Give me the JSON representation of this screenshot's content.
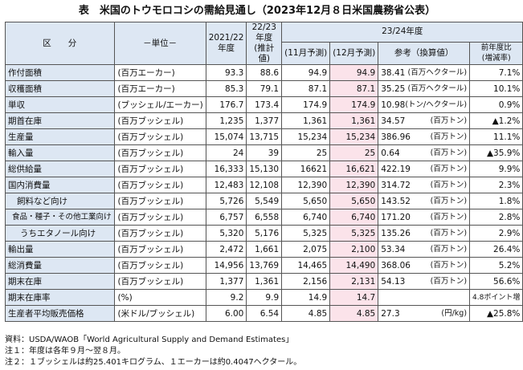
{
  "title": "表　米国のトウモロコシの需給見通し（2023年12月８日米国農務省公表）",
  "header": {
    "item": "区　　分",
    "unit": "－単位－",
    "col_2021": "2021/22\n年度",
    "col_2022": "22/23\n年度\n(推計値)",
    "col_2023_group": "23/24年度",
    "nov": "(11月予測)",
    "dec": "(12月予測)",
    "ref": "参考（換算値）",
    "change": "前年度比\n(増減率)"
  },
  "rows": [
    {
      "label": "作付面積",
      "unit": "(百万エーカー)",
      "v21": "93.3",
      "v22": "88.6",
      "nov": "94.9",
      "dec": "94.9",
      "ref_val": "38.41",
      "ref_unit": "(百万ヘクタール)",
      "change": "7.1%"
    },
    {
      "label": "収穫面積",
      "unit": "(百万エーカー)",
      "v21": "85.3",
      "v22": "79.1",
      "nov": "87.1",
      "dec": "87.1",
      "ref_val": "35.25",
      "ref_unit": "(百万ヘクタール)",
      "change": "10.1%"
    },
    {
      "label": "単収",
      "unit": "(ブッシェル/エーカー)",
      "v21": "176.7",
      "v22": "173.4",
      "nov": "174.9",
      "dec": "174.9",
      "ref_val": "10.98",
      "ref_unit": "(トン/ヘクタール)",
      "change": "0.9%"
    },
    {
      "label": "期首在庫",
      "unit": "(百万ブッシェル)",
      "v21": "1,235",
      "v22": "1,377",
      "nov": "1,361",
      "dec": "1,361",
      "ref_val": "34.57",
      "ref_unit": "(百万トン)",
      "change": "▲1.2%"
    },
    {
      "label": "生産量",
      "unit": "(百万ブッシェル)",
      "v21": "15,074",
      "v22": "13,715",
      "nov": "15,234",
      "dec": "15,234",
      "ref_val": "386.96",
      "ref_unit": "(百万トン)",
      "change": "11.1%"
    },
    {
      "label": "輸入量",
      "unit": "(百万ブッシェル)",
      "v21": "24",
      "v22": "39",
      "nov": "25",
      "dec": "25",
      "ref_val": "0.64",
      "ref_unit": "(百万トン)",
      "change": "▲35.9%"
    },
    {
      "label": "総供給量",
      "unit": "(百万ブッシェル)",
      "v21": "16,333",
      "v22": "15,130",
      "nov": "16621",
      "dec": "16,621",
      "ref_val": "422.19",
      "ref_unit": "(百万トン)",
      "change": "9.9%"
    },
    {
      "label": "国内消費量",
      "unit": "(百万ブッシェル)",
      "v21": "12,483",
      "v22": "12,108",
      "nov": "12,390",
      "dec": "12,390",
      "ref_val": "314.72",
      "ref_unit": "(百万トン)",
      "change": "2.3%"
    },
    {
      "label": "飼料など向け",
      "indent": "ind1",
      "unit": "(百万ブッシェル)",
      "v21": "5,726",
      "v22": "5,549",
      "nov": "5,650",
      "dec": "5,650",
      "ref_val": "143.52",
      "ref_unit": "(百万トン)",
      "change": "1.8%"
    },
    {
      "label": "食品・種子・その他工業向け",
      "indent": "ind2",
      "unit": "(百万ブッシェル)",
      "v21": "6,757",
      "v22": "6,558",
      "nov": "6,740",
      "dec": "6,740",
      "ref_val": "171.20",
      "ref_unit": "(百万トン)",
      "change": "2.8%"
    },
    {
      "label": "うちエタノール向け",
      "indent": "ind3",
      "unit": "(百万ブッシェル)",
      "v21": "5,320",
      "v22": "5,176",
      "nov": "5,325",
      "dec": "5,325",
      "ref_val": "135.26",
      "ref_unit": "(百万トン)",
      "change": "2.9%"
    },
    {
      "label": "輸出量",
      "unit": "(百万ブッシェル)",
      "v21": "2,472",
      "v22": "1,661",
      "nov": "2,075",
      "dec": "2,100",
      "ref_val": "53.34",
      "ref_unit": "(百万トン)",
      "change": "26.4%"
    },
    {
      "label": "総消費量",
      "unit": "(百万ブッシェル)",
      "v21": "14,956",
      "v22": "13,769",
      "nov": "14,465",
      "dec": "14,490",
      "ref_val": "368.06",
      "ref_unit": "(百万トン)",
      "change": "5.2%"
    },
    {
      "label": "期末在庫",
      "unit": "(百万ブッシェル)",
      "v21": "1,377",
      "v22": "1,361",
      "nov": "2,156",
      "dec": "2,131",
      "ref_val": "54.13",
      "ref_unit": "(百万トン)",
      "change": "56.6%"
    },
    {
      "label": "期末在庫率",
      "unit": "(%)",
      "v21": "9.2",
      "v22": "9.9",
      "nov": "14.9",
      "dec": "14.7",
      "ref_val": "",
      "ref_unit": "",
      "change": "4.8ポイント増",
      "change_small": true
    },
    {
      "label": "生産者平均販売価格",
      "unit": "(米ドル/ブッシェル)",
      "v21": "6.00",
      "v22": "6.54",
      "nov": "4.85",
      "dec": "4.85",
      "ref_val": "27.3",
      "ref_unit": "(円/kg)",
      "change": "▲25.8%"
    }
  ],
  "notes": [
    "資料：USDA/WAOB「World Agricultural Supply and Demand Estimates」",
    "注１：年度は各年９月～翌８月。",
    "注２：１ブッシェルは約25.401キログラム、１エーカーは約0.4047ヘクタール。"
  ]
}
